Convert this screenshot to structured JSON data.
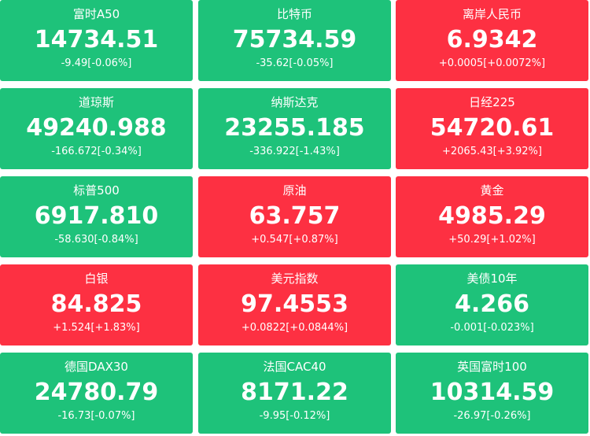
{
  "tiles": [
    {
      "name": "富时A50",
      "price": "14734.51",
      "change": "-9.49[-0.06%]",
      "color": "#1ec27a"
    },
    {
      "name": "比特币",
      "price": "75734.59",
      "change": "-35.62[-0.05%]",
      "color": "#1ec27a"
    },
    {
      "name": "离岸人民币",
      "price": "6.9342",
      "change": "+0.0005[+0.0072%]",
      "color": "#fd3042"
    },
    {
      "name": "道琼斯",
      "price": "49240.988",
      "change": "-166.672[-0.34%]",
      "color": "#1ec27a"
    },
    {
      "name": "纳斯达克",
      "price": "23255.185",
      "change": "-336.922[-1.43%]",
      "color": "#1ec27a"
    },
    {
      "name": "日经225",
      "price": "54720.61",
      "change": "+2065.43[+3.92%]",
      "color": "#fd3042"
    },
    {
      "name": "标普500",
      "price": "6917.810",
      "change": "-58.630[-0.84%]",
      "color": "#1ec27a"
    },
    {
      "name": "原油",
      "price": "63.757",
      "change": "+0.547[+0.87%]",
      "color": "#fd3042"
    },
    {
      "name": "黄金",
      "price": "4985.29",
      "change": "+50.29[+1.02%]",
      "color": "#fd3042"
    },
    {
      "name": "白银",
      "price": "84.825",
      "change": "+1.524[+1.83%]",
      "color": "#fd3042"
    },
    {
      "name": "美元指数",
      "price": "97.4553",
      "change": "+0.0822[+0.0844%]",
      "color": "#fd3042"
    },
    {
      "name": "美债10年",
      "price": "4.266",
      "change": "-0.001[-0.023%]",
      "color": "#1ec27a"
    },
    {
      "name": "德国DAX30",
      "price": "24780.79",
      "change": "-16.73[-0.07%]",
      "color": "#1ec27a"
    },
    {
      "name": "法国CAC40",
      "price": "8171.22",
      "change": "-9.95[-0.12%]",
      "color": "#1ec27a"
    },
    {
      "name": "英国富时100",
      "price": "10314.59",
      "change": "-26.97[-0.26%]",
      "color": "#1ec27a"
    }
  ]
}
